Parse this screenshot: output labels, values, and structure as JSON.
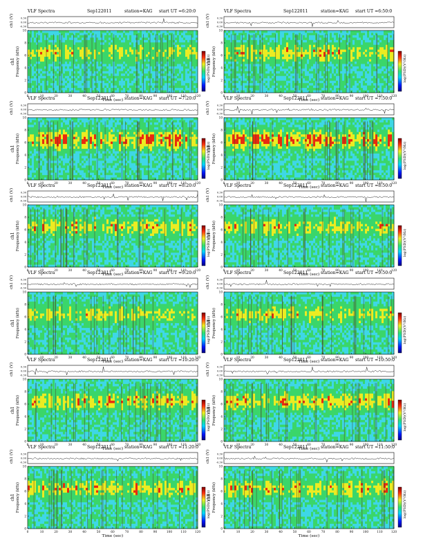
{
  "figure": {
    "header_left": "VLF Spectra",
    "date": "Sep122011",
    "station": "station=KAG",
    "ut_prefix": "start UT =",
    "waveform_ylabel": "ch1 (V)",
    "waveform_ticks": [
      "0.30",
      "0.00",
      "-0.30"
    ],
    "spec_ylabel_top": "ch1",
    "spec_ylabel_bottom": "Frequency (kHz)",
    "spec_yticks": [
      "0",
      "2",
      "4",
      "6",
      "8",
      "10"
    ],
    "xticks": [
      "0",
      "10",
      "20",
      "30",
      "40",
      "50",
      "60",
      "70",
      "80",
      "90",
      "100",
      "110",
      "120"
    ],
    "xlabel": "Time (sec)",
    "colorbar_label": "log(PSD)(V²/Hz)"
  },
  "colors": {
    "red": "#e82a10",
    "yellow": "#ecec22",
    "green": "#3ad66a",
    "cyan": "#3ed7e6",
    "blue": "#1a2ab8",
    "dark": "#4a3a2a"
  },
  "chart_data": [
    {
      "type": "heatmap",
      "start_ut": "6:20:0",
      "x_range": [
        0,
        120
      ],
      "y_range": [
        0,
        10
      ],
      "yunit": "kHz",
      "intensity": 0.45
    },
    {
      "type": "heatmap",
      "start_ut": "6:50:0",
      "x_range": [
        0,
        120
      ],
      "y_range": [
        0,
        10
      ],
      "yunit": "kHz",
      "intensity": 0.55
    },
    {
      "type": "heatmap",
      "start_ut": "7:20:0",
      "x_range": [
        0,
        120
      ],
      "y_range": [
        0,
        10
      ],
      "yunit": "kHz",
      "intensity": 0.85
    },
    {
      "type": "heatmap",
      "start_ut": "7:50:0",
      "x_range": [
        0,
        120
      ],
      "y_range": [
        0,
        10
      ],
      "yunit": "kHz",
      "intensity": 0.8
    },
    {
      "type": "heatmap",
      "start_ut": "8:20:0",
      "x_range": [
        0,
        120
      ],
      "y_range": [
        0,
        10
      ],
      "yunit": "kHz",
      "intensity": 0.55
    },
    {
      "type": "heatmap",
      "start_ut": "8:50:0",
      "x_range": [
        0,
        120
      ],
      "y_range": [
        0,
        10
      ],
      "yunit": "kHz",
      "intensity": 0.5
    },
    {
      "type": "heatmap",
      "start_ut": "9:20:0",
      "x_range": [
        0,
        120
      ],
      "y_range": [
        0,
        10
      ],
      "yunit": "kHz",
      "intensity": 0.4
    },
    {
      "type": "heatmap",
      "start_ut": "9:50:0",
      "x_range": [
        0,
        120
      ],
      "y_range": [
        0,
        10
      ],
      "yunit": "kHz",
      "intensity": 0.45
    },
    {
      "type": "heatmap",
      "start_ut": "10:20:0",
      "x_range": [
        0,
        120
      ],
      "y_range": [
        0,
        10
      ],
      "yunit": "kHz",
      "intensity": 0.55
    },
    {
      "type": "heatmap",
      "start_ut": "10:50:0",
      "x_range": [
        0,
        120
      ],
      "y_range": [
        0,
        10
      ],
      "yunit": "kHz",
      "intensity": 0.6
    },
    {
      "type": "heatmap",
      "start_ut": "11:20:0",
      "x_range": [
        0,
        120
      ],
      "y_range": [
        0,
        10
      ],
      "yunit": "kHz",
      "intensity": 0.55
    },
    {
      "type": "heatmap",
      "start_ut": "11:50:0",
      "x_range": [
        0,
        120
      ],
      "y_range": [
        0,
        10
      ],
      "yunit": "kHz",
      "intensity": 0.55
    }
  ]
}
